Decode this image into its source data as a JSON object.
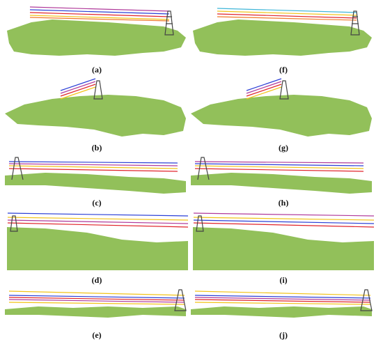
{
  "figure": {
    "panels": [
      {
        "id": "a",
        "label": "(a)"
      },
      {
        "id": "b",
        "label": "(b)"
      },
      {
        "id": "c",
        "label": "(c)"
      },
      {
        "id": "d",
        "label": "(d)"
      },
      {
        "id": "e",
        "label": "(e)"
      },
      {
        "id": "f",
        "label": "(f)"
      },
      {
        "id": "g",
        "label": "(g)"
      },
      {
        "id": "h",
        "label": "(h)"
      },
      {
        "id": "i",
        "label": "(i)"
      },
      {
        "id": "j",
        "label": "(j)"
      }
    ],
    "colors": {
      "vegetation": "#92c05a",
      "tower": "#444444",
      "wire_blue": "#2b3fd6",
      "wire_red": "#e0232a",
      "wire_yellow": "#f2c318",
      "wire_purple": "#b0399a",
      "wire_orange": "#f07a2a",
      "wire_cyan": "#3fb6d8"
    }
  }
}
